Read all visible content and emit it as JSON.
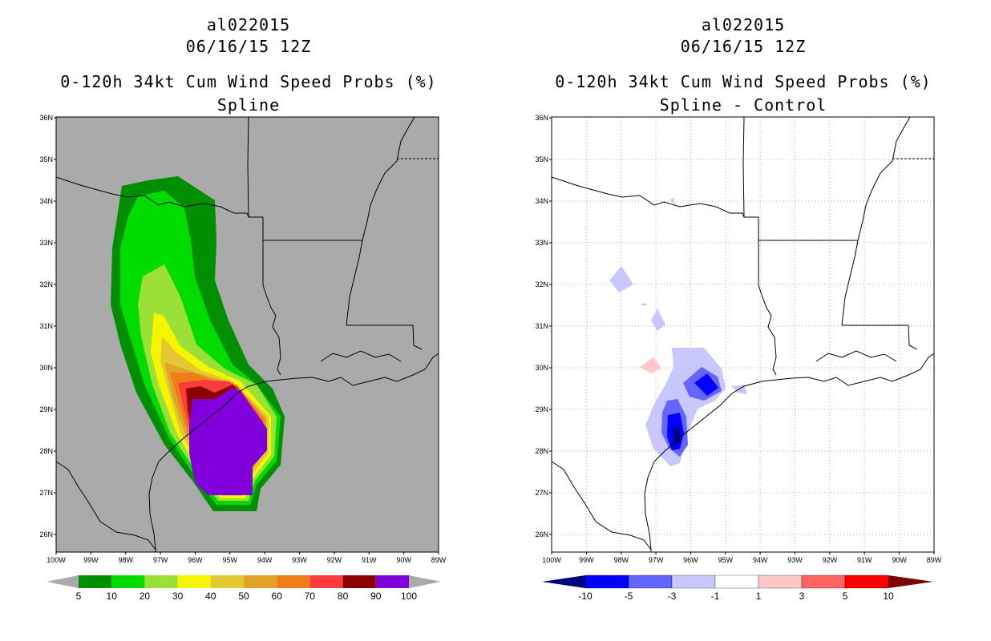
{
  "left_panel": {
    "storm_id": "al022015",
    "datetime": "06/16/15 12Z",
    "product": "0-120h 34kt Cum Wind Speed Probs (%)",
    "subtitle": "Spline",
    "colorbar": {
      "labels": [
        "5",
        "10",
        "20",
        "30",
        "40",
        "50",
        "60",
        "70",
        "80",
        "90",
        "100"
      ],
      "colors": [
        "#008f00",
        "#00dc00",
        "#9be037",
        "#f5f500",
        "#e3c832",
        "#e1a428",
        "#ee7d19",
        "#ff3c3c",
        "#8c0000",
        "#8200dc"
      ]
    }
  },
  "right_panel": {
    "storm_id": "al022015",
    "datetime": "06/16/15 12Z",
    "product": "0-120h 34kt Cum Wind Speed Probs (%)",
    "subtitle": "Spline - Control",
    "colorbar": {
      "labels": [
        "-10",
        "-5",
        "-3",
        "-1",
        "1",
        "3",
        "5",
        "10"
      ],
      "colors": [
        "#00007f",
        "#0000ff",
        "#6464ff",
        "#c8c8ff",
        "#ffffff",
        "#ffc8c8",
        "#ff6464",
        "#ff0000",
        "#7f0000"
      ]
    }
  },
  "axes": {
    "lat_labels": [
      "36N",
      "35N",
      "34N",
      "33N",
      "32N",
      "31N",
      "30N",
      "29N",
      "28N",
      "27N",
      "26N"
    ],
    "lon_labels": [
      "100W",
      "99W",
      "98W",
      "97W",
      "96W",
      "95W",
      "94W",
      "93W",
      "92W",
      "91W",
      "90W",
      "89W"
    ]
  }
}
